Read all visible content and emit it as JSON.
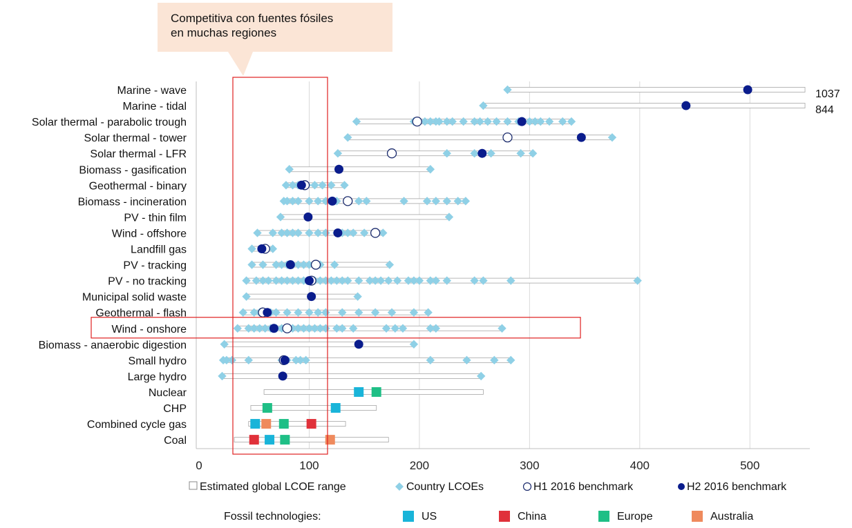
{
  "chart_data": {
    "type": "scatter",
    "xlim": [
      0,
      550
    ],
    "x_ticks": [
      "0",
      "100",
      "200",
      "300",
      "400",
      "500"
    ],
    "grid": "vertical",
    "categories": [
      "Marine - wave",
      "Marine - tidal",
      "Solar thermal - parabolic trough",
      "Solar thermal - tower",
      "Solar thermal - LFR",
      "Biomass - gasification",
      "Geothermal - binary",
      "Biomass - incineration",
      "PV - thin film",
      "Wind - offshore",
      "Landfill gas",
      "PV - tracking",
      "PV - no tracking",
      "Municipal solid waste",
      "Geothermal - flash",
      "Wind - onshore",
      "Biomass - anaerobic digestion",
      "Small hydro",
      "Large hydro",
      "Nuclear",
      "CHP",
      "Combined cycle gas",
      "Coal"
    ],
    "ranges": [
      [
        280,
        550
      ],
      [
        258,
        550
      ],
      [
        143,
        338
      ],
      [
        135,
        375
      ],
      [
        126,
        303
      ],
      [
        82,
        210
      ],
      [
        79,
        132
      ],
      [
        77,
        242
      ],
      [
        74,
        227
      ],
      [
        53,
        167
      ],
      [
        48,
        67
      ],
      [
        48,
        173
      ],
      [
        43,
        398
      ],
      [
        43,
        144
      ],
      [
        40,
        208
      ],
      [
        35,
        275
      ],
      [
        23,
        195
      ],
      [
        22,
        283
      ],
      [
        21,
        256
      ],
      [
        59,
        258
      ],
      [
        47,
        161
      ],
      [
        45,
        133
      ],
      [
        32,
        172
      ]
    ],
    "off_scale_labels": [
      {
        "row": 0,
        "text": "1037"
      },
      {
        "row": 1,
        "text": "844"
      }
    ],
    "country_lcoes": [
      [
        280
      ],
      [
        258
      ],
      [
        143,
        195,
        205,
        210,
        215,
        218,
        225,
        230,
        240,
        250,
        255,
        262,
        270,
        280,
        290,
        300,
        305,
        310,
        318,
        330,
        338
      ],
      [
        135,
        375
      ],
      [
        126,
        225,
        250,
        265,
        292,
        303
      ],
      [
        82,
        210
      ],
      [
        79,
        85,
        90,
        98,
        105,
        112,
        120,
        132
      ],
      [
        77,
        80,
        85,
        90,
        100,
        108,
        115,
        125,
        135,
        145,
        152,
        186,
        207,
        215,
        225,
        235,
        242
      ],
      [
        74,
        227
      ],
      [
        53,
        67,
        75,
        80,
        85,
        90,
        100,
        108,
        115,
        125,
        130,
        135,
        140,
        150,
        160,
        167
      ],
      [
        48,
        60,
        67
      ],
      [
        48,
        58,
        70,
        75,
        80,
        85,
        90,
        95,
        100,
        110,
        123,
        173
      ],
      [
        43,
        52,
        58,
        63,
        70,
        75,
        80,
        85,
        90,
        95,
        100,
        105,
        110,
        115,
        120,
        125,
        130,
        135,
        145,
        155,
        160,
        165,
        172,
        180,
        190,
        195,
        200,
        210,
        215,
        225,
        250,
        258,
        283,
        398
      ],
      [
        43,
        144
      ],
      [
        40,
        50,
        55,
        60,
        65,
        70,
        80,
        90,
        100,
        108,
        115,
        130,
        145,
        160,
        175,
        195,
        208
      ],
      [
        35,
        45,
        50,
        55,
        60,
        65,
        70,
        75,
        80,
        85,
        90,
        95,
        100,
        105,
        110,
        115,
        125,
        130,
        140,
        170,
        178,
        185,
        210,
        215,
        275
      ],
      [
        23,
        195
      ],
      [
        22,
        25,
        30,
        45,
        75,
        80,
        88,
        92,
        97,
        210,
        243,
        268,
        283
      ],
      [
        21,
        256
      ],
      [],
      [],
      [],
      []
    ],
    "h1_2016_benchmark": [
      null,
      null,
      198,
      280,
      175,
      null,
      96,
      135,
      null,
      160,
      60,
      106,
      102,
      null,
      58,
      80,
      null,
      77,
      null,
      null,
      null,
      null,
      null
    ],
    "h2_2016_benchmark": [
      498,
      442,
      293,
      347,
      257,
      127,
      93,
      121,
      99,
      126,
      57,
      83,
      100,
      102,
      62,
      68,
      145,
      78,
      76,
      null,
      null,
      null,
      null
    ],
    "fossil_points": [
      {
        "row": 19,
        "region": "US",
        "x": 145
      },
      {
        "row": 19,
        "region": "Europe",
        "x": 161
      },
      {
        "row": 20,
        "region": "Europe",
        "x": 62
      },
      {
        "row": 20,
        "region": "US",
        "x": 124
      },
      {
        "row": 21,
        "region": "US",
        "x": 51
      },
      {
        "row": 21,
        "region": "Australia",
        "x": 61
      },
      {
        "row": 21,
        "region": "Europe",
        "x": 77
      },
      {
        "row": 21,
        "region": "China",
        "x": 102
      },
      {
        "row": 22,
        "region": "China",
        "x": 50
      },
      {
        "row": 22,
        "region": "US",
        "x": 64
      },
      {
        "row": 22,
        "region": "Europe",
        "x": 78
      },
      {
        "row": 22,
        "region": "Australia",
        "x": 119
      }
    ],
    "legend": [
      {
        "key": "range",
        "label": "Estimated global LCOE range"
      },
      {
        "key": "country",
        "label": "Country LCOEs"
      },
      {
        "key": "h1",
        "label": "H1 2016 benchmark"
      },
      {
        "key": "h2",
        "label": "H2 2016 benchmark"
      }
    ],
    "fossil_legend_title": "Fossil technologies:",
    "fossil_legend": [
      {
        "region": "US",
        "label": "US",
        "color": "#19b4d9"
      },
      {
        "region": "China",
        "label": "China",
        "color": "#e0313a"
      },
      {
        "region": "Europe",
        "label": "Europe",
        "color": "#1fbf86"
      },
      {
        "region": "Australia",
        "label": "Australia",
        "color": "#ef8a5d"
      }
    ],
    "colors": {
      "country": "#8fd0e6",
      "h2": "#0a1c8c",
      "highlight": "#e02020",
      "grid": "#d9d9d9"
    },
    "highlight_row": 15
  },
  "callout": {
    "lines": [
      "Competitiva con fuentes fósiles",
      "en muchas regiones"
    ],
    "color": "#fbe5d6"
  }
}
